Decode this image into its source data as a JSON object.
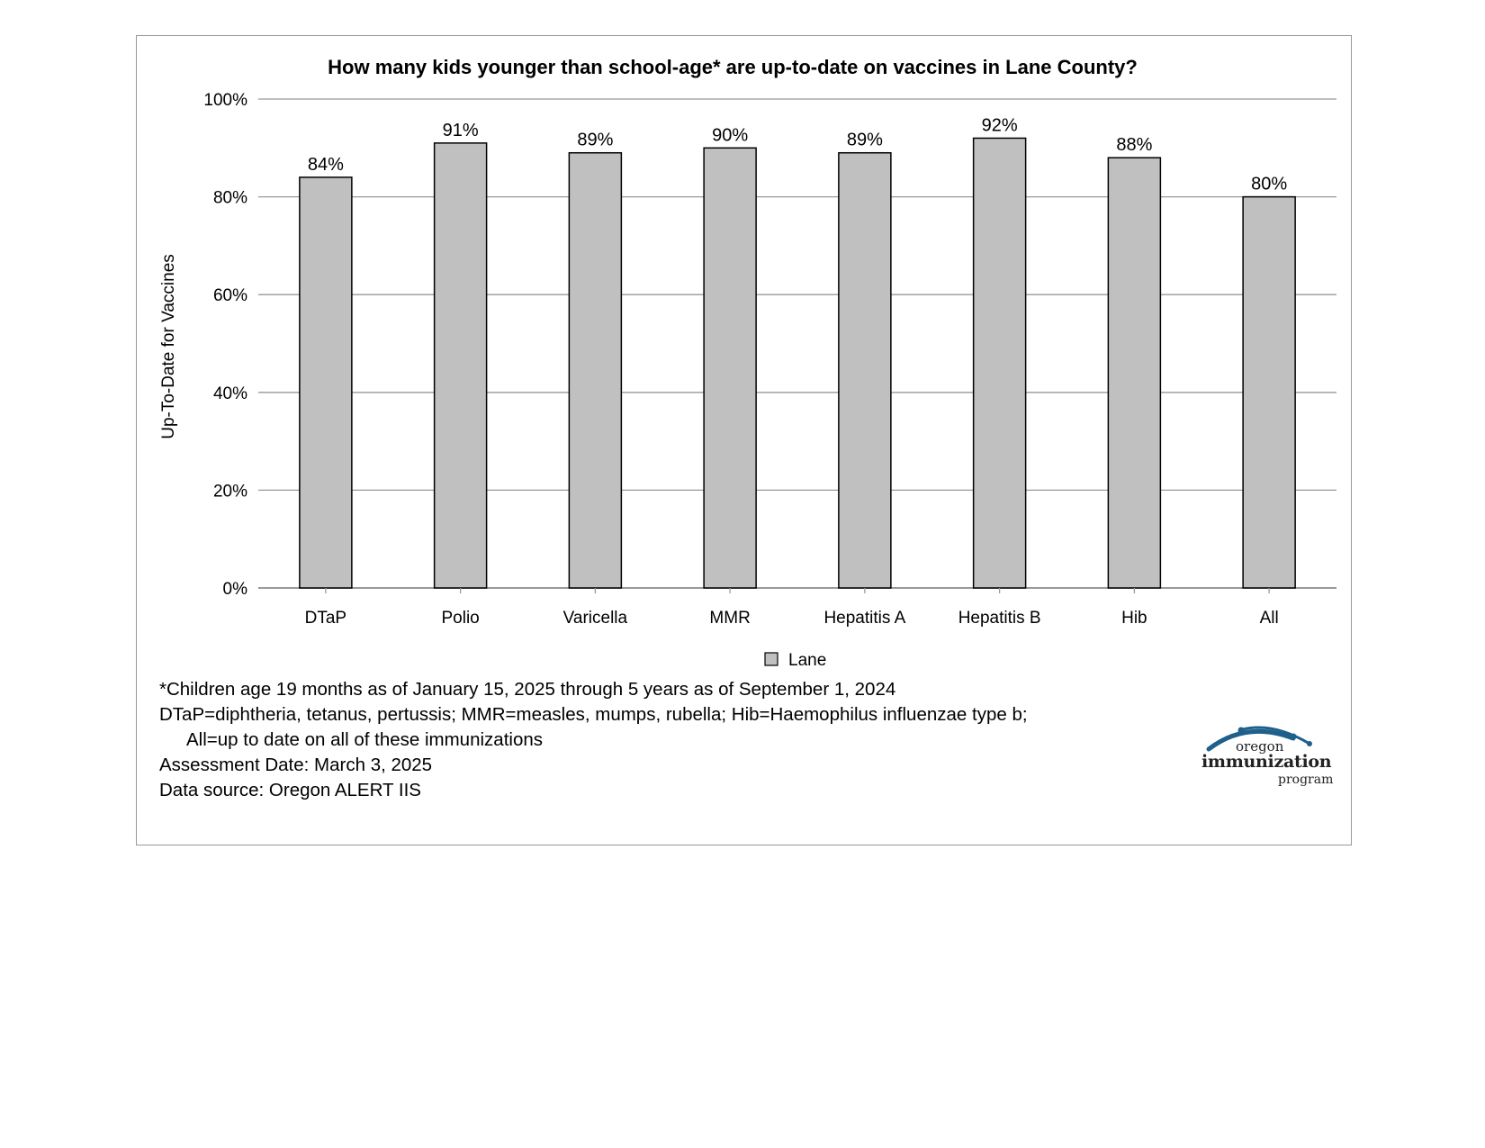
{
  "chart_data": {
    "type": "bar",
    "title": "How many kids younger than school-age* are up-to-date on vaccines in Lane County?",
    "ylabel": "Up-To-Date for Vaccines",
    "xlabel": "",
    "categories": [
      "DTaP",
      "Polio",
      "Varicella",
      "MMR",
      "Hepatitis A",
      "Hepatitis B",
      "Hib",
      "All"
    ],
    "series": [
      {
        "name": "Lane",
        "values": [
          84,
          91,
          89,
          90,
          89,
          92,
          88,
          80
        ],
        "labels": [
          "84%",
          "91%",
          "89%",
          "90%",
          "89%",
          "92%",
          "88%",
          "80%"
        ]
      }
    ],
    "ylim": [
      0,
      100
    ],
    "yticks": [
      "0%",
      "20%",
      "40%",
      "60%",
      "80%",
      "100%"
    ],
    "grid": true,
    "legend": "bottom-center",
    "colors": {
      "bar": "#c0c0c0",
      "bar_outline": "#000000",
      "grid": "#999999"
    }
  },
  "notes": {
    "line1": "*Children age 19 months as of January 15, 2025 through 5 years as of September 1, 2024",
    "line2": "DTaP=diphtheria, tetanus, pertussis; MMR=measles, mumps, rubella; Hib=Haemophilus influenzae type b;",
    "line3": "All=up to date on all of these immunizations",
    "line4": "Assessment Date: March 3, 2025",
    "line5": "Data source: Oregon ALERT IIS"
  },
  "logo": {
    "line1": "oregon",
    "line2": "immunization",
    "line3": "program"
  }
}
